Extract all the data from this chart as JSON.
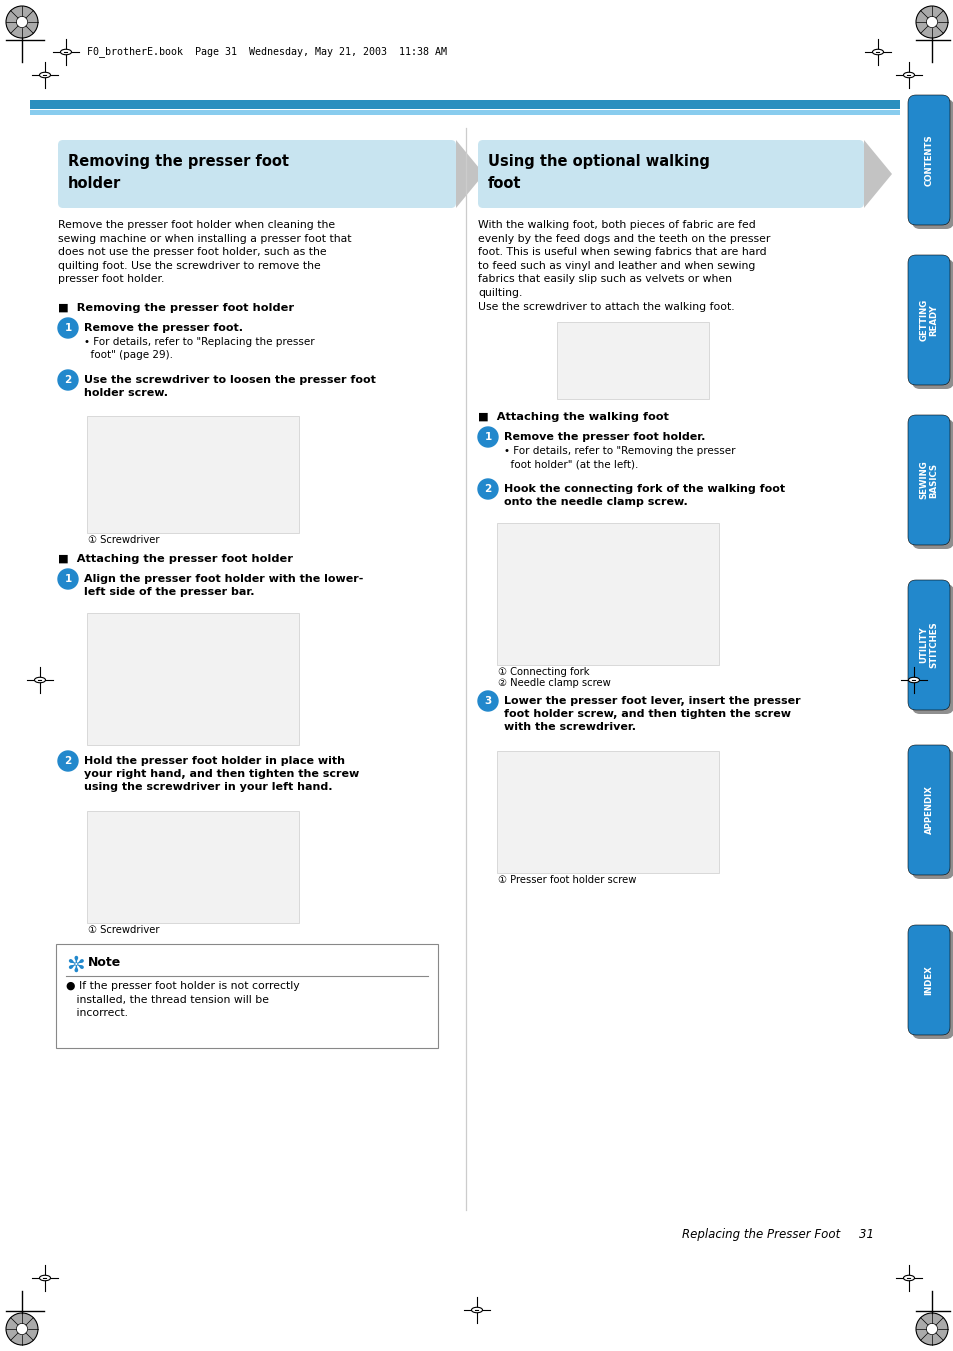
{
  "page_bg": "#ffffff",
  "sidebar_blue": "#2288cc",
  "sidebar_shadow": "#333333",
  "header_text": "F0_brotherE.book  Page 31  Wednesday, May 21, 2003  11:38 AM",
  "footer_text": "Replacing the Presser Foot     31",
  "left_title_line1": "Removing the presser foot",
  "left_title_line2": "holder",
  "right_title_line1": "Using the optional walking",
  "right_title_line2": "foot",
  "left_body": "Remove the presser foot holder when cleaning the\nsewing machine or when installing a presser foot that\ndoes not use the presser foot holder, such as the\nquilting foot. Use the screwdriver to remove the\npresser foot holder.",
  "right_body": "With the walking foot, both pieces of fabric are fed\nevenly by the feed dogs and the teeth on the presser\nfoot. This is useful when sewing fabrics that are hard\nto feed such as vinyl and leather and when sewing\nfabrics that easily slip such as velvets or when\nquilting.\nUse the screwdriver to attach the walking foot.",
  "title_bg": "#c8e4f0",
  "chevron_color": "#aaaaaa",
  "step_color": "#2288cc",
  "blue_bar1": "#2b8fbf",
  "blue_bar2": "#88ccee",
  "divider_color": "#cccccc",
  "note_border": "#888888",
  "img_bg": "#f2f2f2",
  "img_border": "#cccccc"
}
